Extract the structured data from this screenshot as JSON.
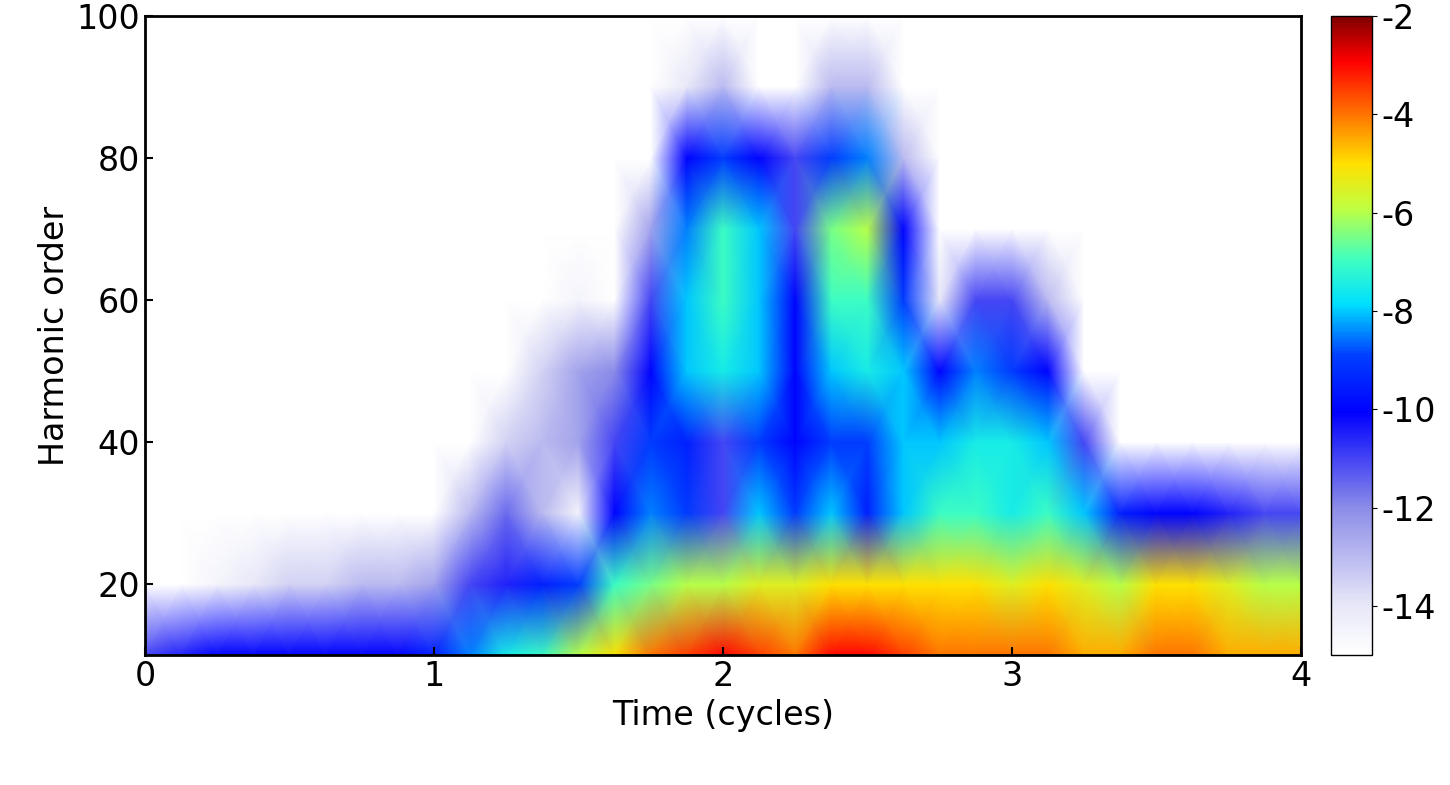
{
  "chart_data": {
    "type": "heatmap",
    "xlabel": "Time (cycles)",
    "ylabel": "Harmonic order",
    "x": [
      0,
      0.125,
      0.25,
      0.375,
      0.5,
      0.625,
      0.75,
      0.875,
      1,
      1.125,
      1.25,
      1.375,
      1.5,
      1.625,
      1.75,
      1.875,
      2,
      2.125,
      2.25,
      2.375,
      2.5,
      2.625,
      2.75,
      2.875,
      3,
      3.125,
      3.25,
      3.375,
      3.5,
      3.625,
      3.75,
      3.875,
      4
    ],
    "y": [
      10,
      20,
      30,
      40,
      50,
      60,
      70,
      80,
      90,
      100
    ],
    "z": [
      [
        -11,
        -15,
        -15,
        -15,
        -15,
        -15,
        -15,
        -15,
        -15,
        -15
      ],
      [
        -10.5,
        -15,
        -15,
        -15,
        -15,
        -15,
        -15,
        -15,
        -15,
        -15
      ],
      [
        -10,
        -14.5,
        -15,
        -15,
        -15,
        -15,
        -15,
        -15,
        -15,
        -15
      ],
      [
        -10,
        -14,
        -15,
        -15,
        -15,
        -15,
        -15,
        -15,
        -15,
        -15
      ],
      [
        -10,
        -13.5,
        -15,
        -15,
        -15,
        -15,
        -15,
        -15,
        -15,
        -15
      ],
      [
        -10,
        -13.5,
        -15,
        -15,
        -15,
        -15,
        -15,
        -15,
        -15,
        -15
      ],
      [
        -10,
        -13,
        -15,
        -15,
        -15,
        -15,
        -15,
        -15,
        -15,
        -15
      ],
      [
        -10,
        -13,
        -15,
        -15,
        -15,
        -15,
        -15,
        -15,
        -15,
        -15
      ],
      [
        -9.5,
        -12.5,
        -15,
        -15,
        -15,
        -15,
        -15,
        -15,
        -15,
        -15
      ],
      [
        -8.5,
        -11,
        -13,
        -15,
        -15,
        -15,
        -15,
        -15,
        -15,
        -15
      ],
      [
        -7.5,
        -10.5,
        -11.5,
        -13.5,
        -15,
        -15,
        -15,
        -15,
        -15,
        -15
      ],
      [
        -7,
        -9.5,
        -13,
        -13,
        -13.5,
        -15,
        -15,
        -15,
        -15,
        -15
      ],
      [
        -6,
        -9,
        -14.5,
        -12.5,
        -12.5,
        -14.5,
        -15,
        -15,
        -15,
        -15
      ],
      [
        -5,
        -7,
        -10,
        -11,
        -12,
        -15,
        -15,
        -15,
        -15,
        -15
      ],
      [
        -4,
        -6.5,
        -8.5,
        -9,
        -10,
        -11,
        -12.5,
        -15,
        -15,
        -15
      ],
      [
        -3.5,
        -6,
        -9,
        -9.5,
        -8,
        -8,
        -8.5,
        -10,
        -14,
        -15
      ],
      [
        -3,
        -6,
        -11,
        -11,
        -7.5,
        -7,
        -7,
        -9,
        -13,
        -15
      ],
      [
        -3.5,
        -5.5,
        -8,
        -9,
        -8,
        -8,
        -8,
        -10,
        -15,
        -15
      ],
      [
        -4,
        -5.5,
        -9,
        -10,
        -10,
        -10,
        -11,
        -11,
        -15,
        -15
      ],
      [
        -3,
        -5,
        -8,
        -9,
        -8,
        -7,
        -6.5,
        -9,
        -13,
        -15
      ],
      [
        -3,
        -5,
        -9.5,
        -9,
        -7.5,
        -7,
        -6,
        -8.5,
        -13,
        -15
      ],
      [
        -3.5,
        -5,
        -8,
        -8,
        -8,
        -9,
        -10,
        -13,
        -15,
        -15
      ],
      [
        -4,
        -5,
        -7,
        -8,
        -10,
        -14,
        -15,
        -15,
        -15,
        -15
      ],
      [
        -4,
        -5,
        -7,
        -7.5,
        -8.5,
        -11,
        -15,
        -15,
        -15,
        -15
      ],
      [
        -4,
        -5.5,
        -7.5,
        -7.5,
        -9,
        -11,
        -15,
        -15,
        -15,
        -15
      ],
      [
        -4,
        -5,
        -7,
        -8,
        -10,
        -13,
        -15,
        -15,
        -15,
        -15
      ],
      [
        -4.5,
        -5.5,
        -8,
        -11,
        -15,
        -15,
        -15,
        -15,
        -15,
        -15
      ],
      [
        -4.5,
        -6,
        -9.5,
        -15,
        -15,
        -15,
        -15,
        -15,
        -15,
        -15
      ],
      [
        -4,
        -5,
        -10,
        -15,
        -15,
        -15,
        -15,
        -15,
        -15,
        -15
      ],
      [
        -4,
        -5,
        -10,
        -15,
        -15,
        -15,
        -15,
        -15,
        -15,
        -15
      ],
      [
        -4.5,
        -5.5,
        -10.5,
        -15,
        -15,
        -15,
        -15,
        -15,
        -15,
        -15
      ],
      [
        -4.5,
        -6,
        -11,
        -15,
        -15,
        -15,
        -15,
        -15,
        -15,
        -15
      ],
      [
        -4.5,
        -6,
        -11,
        -15,
        -15,
        -15,
        -15,
        -15,
        -15,
        -15
      ]
    ],
    "xlim": [
      0,
      4
    ],
    "xticks": [
      0,
      1,
      2,
      3,
      4
    ],
    "ylim": [
      10,
      100
    ],
    "yticks": [
      20,
      40,
      60,
      80,
      100
    ],
    "zlim": [
      -15,
      -2
    ],
    "zticks": [
      -14,
      -12,
      -10,
      -8,
      -6,
      -4,
      -2
    ]
  }
}
